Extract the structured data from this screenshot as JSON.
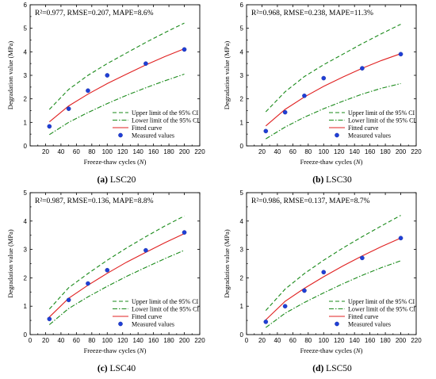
{
  "figure": {
    "legend": {
      "upper": "Upper limit of the 95% CI",
      "lower": "Lower limit of the 95% CI",
      "fitted": "Fitted curve",
      "measured": "Measured values"
    },
    "colors": {
      "upper": "#1a8a1a",
      "lower": "#1a8a1a",
      "fitted": "#e02020",
      "measured": "#1f3fd6"
    }
  },
  "chart_data": [
    {
      "type": "line",
      "panel_label": "(a)",
      "panel_name": "LSC20",
      "stats": "R²=0.977, RMSE=0.207, MAPE=8.6%",
      "xlabel_main": "Freeze-thaw cycles (",
      "xlabel_var": "N",
      "xlabel_end": ")",
      "ylabel": "Degradation value (MPa)",
      "xlim": [
        0,
        220
      ],
      "ylim": [
        0,
        6
      ],
      "xticks": [
        20,
        40,
        60,
        80,
        100,
        120,
        140,
        160,
        180,
        200,
        220
      ],
      "yticks": [
        0,
        1,
        2,
        3,
        4,
        5,
        6
      ],
      "x": [
        25,
        50,
        75,
        100,
        125,
        150,
        175,
        200
      ],
      "series": [
        {
          "name": "Upper limit of the 95% CI",
          "values": [
            1.55,
            2.4,
            3.0,
            3.5,
            3.95,
            4.4,
            4.82,
            5.22
          ]
        },
        {
          "name": "Lower limit of the 95% CI",
          "values": [
            0.48,
            1.0,
            1.42,
            1.8,
            2.15,
            2.47,
            2.77,
            3.05
          ]
        },
        {
          "name": "Fitted curve",
          "values": [
            1.02,
            1.7,
            2.2,
            2.65,
            3.05,
            3.44,
            3.8,
            4.13
          ]
        }
      ],
      "measured": {
        "x": [
          25,
          50,
          75,
          100,
          150,
          200
        ],
        "y": [
          0.83,
          1.58,
          2.35,
          3.0,
          3.5,
          4.1
        ]
      }
    },
    {
      "type": "line",
      "panel_label": "(b)",
      "panel_name": "LSC30",
      "stats": "R²=0.968, RMSE=0.238, MAPE=11.3%",
      "xlabel_main": "Freeze-thaw cycles (",
      "xlabel_var": "N",
      "xlabel_end": ")",
      "ylabel": "Degradation value (MPa)",
      "xlim": [
        0,
        220
      ],
      "ylim": [
        0,
        6
      ],
      "xticks": [
        20,
        40,
        60,
        80,
        100,
        120,
        140,
        160,
        180,
        200,
        220
      ],
      "yticks": [
        0,
        1,
        2,
        3,
        4,
        5,
        6
      ],
      "x": [
        25,
        50,
        75,
        100,
        125,
        150,
        175,
        200
      ],
      "series": [
        {
          "name": "Upper limit of the 95% CI",
          "values": [
            1.45,
            2.3,
            2.95,
            3.45,
            3.9,
            4.35,
            4.77,
            5.17
          ]
        },
        {
          "name": "Lower limit of the 95% CI",
          "values": [
            0.3,
            0.8,
            1.22,
            1.58,
            1.9,
            2.2,
            2.45,
            2.65
          ]
        },
        {
          "name": "Fitted curve",
          "values": [
            0.85,
            1.55,
            2.08,
            2.53,
            2.93,
            3.3,
            3.63,
            3.92
          ]
        }
      ],
      "measured": {
        "x": [
          25,
          50,
          75,
          100,
          150,
          200
        ],
        "y": [
          0.63,
          1.43,
          2.13,
          2.88,
          3.3,
          3.9
        ]
      }
    },
    {
      "type": "line",
      "panel_label": "(c)",
      "panel_name": "LSC40",
      "stats": "R²=0.987, RMSE=0.136, MAPE=8.8%",
      "xlabel_main": "Freeze-thaw cycles (",
      "xlabel_var": "N",
      "xlabel_end": ")",
      "ylabel": "Degradation value (MPa)",
      "xlim": [
        0,
        220
      ],
      "ylim": [
        0,
        5
      ],
      "xticks": [
        0,
        20,
        40,
        60,
        80,
        100,
        120,
        140,
        160,
        180,
        200,
        220
      ],
      "yticks": [
        0,
        1,
        2,
        3,
        4,
        5
      ],
      "x": [
        25,
        50,
        75,
        100,
        125,
        150,
        175,
        200
      ],
      "series": [
        {
          "name": "Upper limit of the 95% CI",
          "values": [
            0.9,
            1.65,
            2.15,
            2.62,
            3.05,
            3.45,
            3.83,
            4.18
          ]
        },
        {
          "name": "Lower limit of the 95% CI",
          "values": [
            0.35,
            0.92,
            1.33,
            1.7,
            2.05,
            2.37,
            2.68,
            2.97
          ]
        },
        {
          "name": "Fitted curve",
          "values": [
            0.62,
            1.28,
            1.74,
            2.16,
            2.55,
            2.9,
            3.24,
            3.56
          ]
        }
      ],
      "measured": {
        "x": [
          25,
          50,
          75,
          100,
          150,
          200
        ],
        "y": [
          0.55,
          1.22,
          1.8,
          2.27,
          2.97,
          3.6
        ]
      }
    },
    {
      "type": "line",
      "panel_label": "(d)",
      "panel_name": "LSC50",
      "stats": "R²=0.986, RMSE=0.137, MAPE=8.7%",
      "xlabel_main": "Freeze-thaw cycles (",
      "xlabel_var": "N",
      "xlabel_end": ")",
      "ylabel": "Degradation value (MPa)",
      "xlim": [
        0,
        220
      ],
      "ylim": [
        0,
        5
      ],
      "xticks": [
        0,
        20,
        40,
        60,
        80,
        100,
        120,
        140,
        160,
        180,
        200,
        220
      ],
      "yticks": [
        0,
        1,
        2,
        3,
        4,
        5
      ],
      "x": [
        25,
        50,
        75,
        100,
        125,
        150,
        175,
        200
      ],
      "series": [
        {
          "name": "Upper limit of the 95% CI",
          "values": [
            0.85,
            1.6,
            2.15,
            2.62,
            3.05,
            3.45,
            3.83,
            4.2
          ]
        },
        {
          "name": "Lower limit of the 95% CI",
          "values": [
            0.25,
            0.75,
            1.13,
            1.47,
            1.79,
            2.09,
            2.36,
            2.6
          ]
        },
        {
          "name": "Fitted curve",
          "values": [
            0.52,
            1.17,
            1.63,
            2.04,
            2.42,
            2.77,
            3.1,
            3.4
          ]
        }
      ],
      "measured": {
        "x": [
          25,
          50,
          75,
          100,
          150,
          200
        ],
        "y": [
          0.45,
          1.0,
          1.55,
          2.2,
          2.7,
          3.4
        ]
      }
    }
  ]
}
